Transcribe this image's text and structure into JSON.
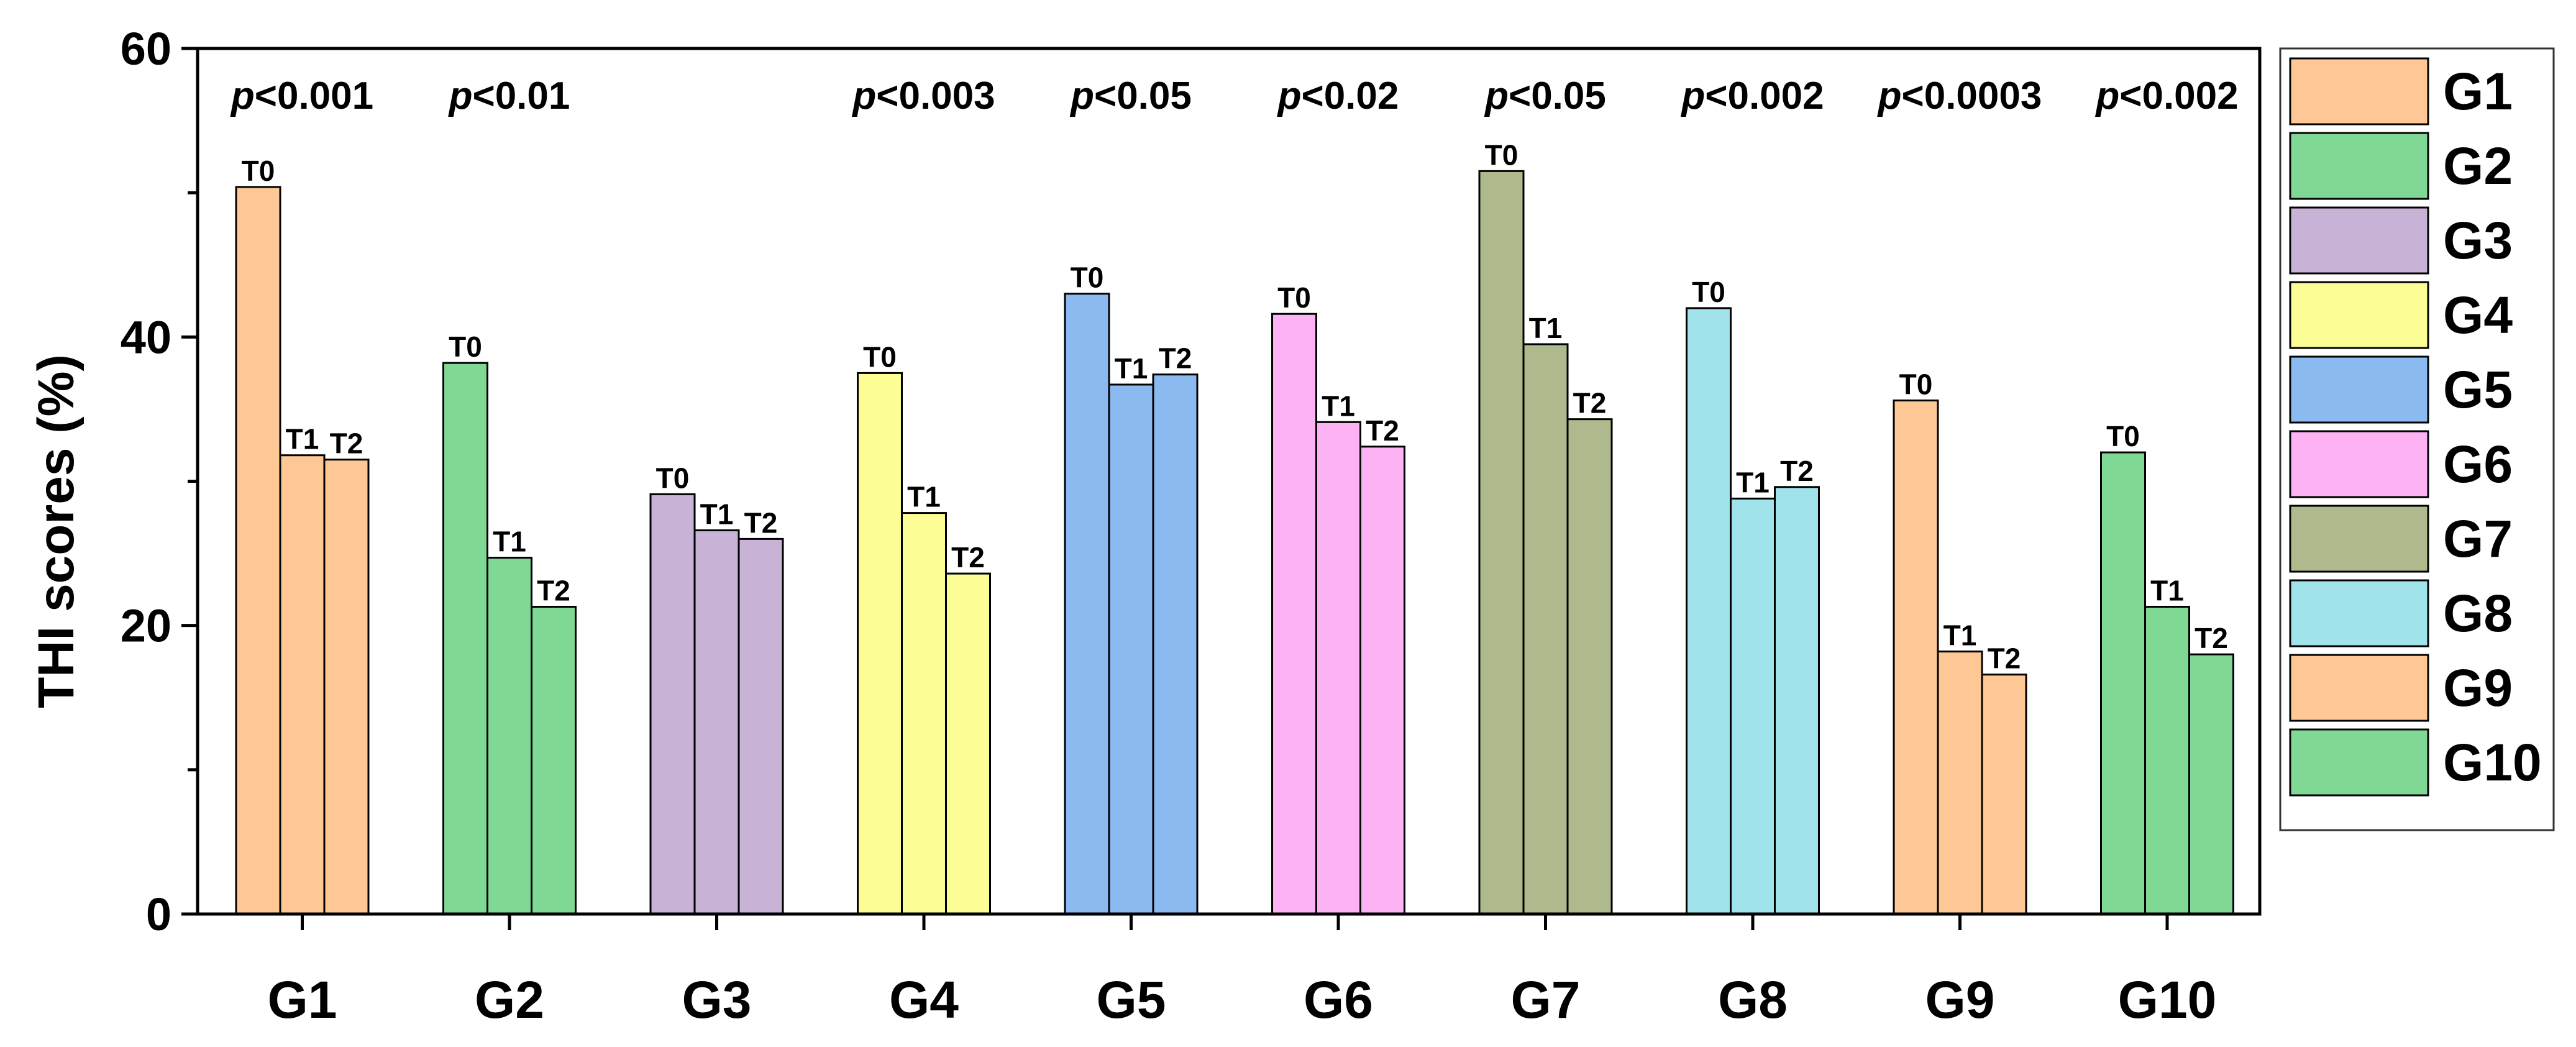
{
  "chart_data": {
    "type": "bar",
    "title": "",
    "xlabel": "",
    "ylabel": "THI scores (%)",
    "ylim": [
      0,
      60
    ],
    "yticks": [
      0,
      20,
      40,
      60
    ],
    "grid": false,
    "legend_position": "right",
    "categories": [
      "G1",
      "G2",
      "G3",
      "G4",
      "G5",
      "G6",
      "G7",
      "G8",
      "G9",
      "G10"
    ],
    "time_points": [
      "T0",
      "T1",
      "T2"
    ],
    "groups": [
      {
        "name": "G1",
        "color": "#FDC896",
        "values": [
          50.4,
          31.8,
          31.5
        ],
        "p_value": "<0.001"
      },
      {
        "name": "G2",
        "color": "#80D895",
        "values": [
          38.2,
          24.7,
          21.3
        ],
        "p_value": "<0.01"
      },
      {
        "name": "G3",
        "color": "#C8B2D6",
        "values": [
          29.1,
          26.6,
          26.0
        ],
        "p_value": ""
      },
      {
        "name": "G4",
        "color": "#FDFD96",
        "values": [
          37.5,
          27.8,
          23.6
        ],
        "p_value": "<0.003"
      },
      {
        "name": "G5",
        "color": "#8BBAF0",
        "values": [
          43.0,
          36.7,
          37.4
        ],
        "p_value": "<0.05"
      },
      {
        "name": "G6",
        "color": "#FDB3F3",
        "values": [
          41.6,
          34.1,
          32.4
        ],
        "p_value": "<0.02"
      },
      {
        "name": "G7",
        "color": "#AEB98D",
        "values": [
          51.5,
          39.5,
          34.3
        ],
        "p_value": "<0.05"
      },
      {
        "name": "G8",
        "color": "#A1E3EB",
        "values": [
          42.0,
          28.8,
          29.6
        ],
        "p_value": "<0.002"
      },
      {
        "name": "G9",
        "color": "#FDC896",
        "values": [
          35.6,
          18.2,
          16.6
        ],
        "p_value": "<0.0003"
      },
      {
        "name": "G10",
        "color": "#80D895",
        "values": [
          32.0,
          21.3,
          18.0
        ],
        "p_value": "<0.002"
      }
    ],
    "p_prefix": "p"
  }
}
